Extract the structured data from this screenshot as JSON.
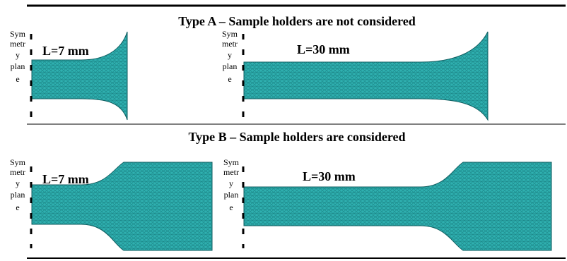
{
  "panels": [
    {
      "title": "Type A – Sample holders are not considered",
      "items": [
        {
          "symmetry": [
            "Sym",
            "metr",
            "y",
            "plan",
            "e"
          ],
          "length": "L=7 mm"
        },
        {
          "symmetry": [
            "Sym",
            "metr",
            "y",
            "plan",
            "e"
          ],
          "length": "L=30 mm"
        }
      ]
    },
    {
      "title": "Type B – Sample holders are considered",
      "items": [
        {
          "symmetry": [
            "Sym",
            "metr",
            "y",
            "plan",
            "e"
          ],
          "length": "L=7 mm"
        },
        {
          "symmetry": [
            "Sym",
            "metr",
            "y",
            "plan",
            "e"
          ],
          "length": "L=30 mm"
        }
      ]
    }
  ]
}
